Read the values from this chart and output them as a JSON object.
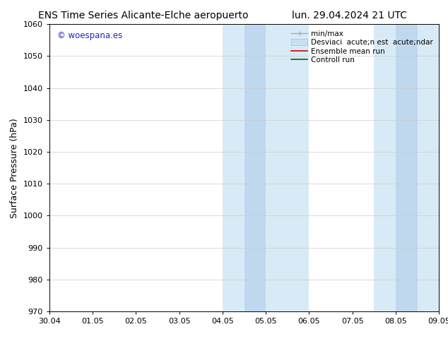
{
  "title_left": "ENS Time Series Alicante-Elche aeropuerto",
  "title_right": "lun. 29.04.2024 21 UTC",
  "ylabel": "Surface Pressure (hPa)",
  "ylim": [
    970,
    1060
  ],
  "yticks": [
    970,
    980,
    990,
    1000,
    1010,
    1020,
    1030,
    1040,
    1050,
    1060
  ],
  "xtick_labels": [
    "30.04",
    "01.05",
    "02.05",
    "03.05",
    "04.05",
    "05.05",
    "06.05",
    "07.05",
    "08.05",
    "09.05"
  ],
  "xtick_positions": [
    0,
    1,
    2,
    3,
    4,
    5,
    6,
    7,
    8,
    9
  ],
  "shaded_bands": [
    {
      "x_start": 4.0,
      "x_end": 4.5,
      "color": "#d8eaf5"
    },
    {
      "x_start": 4.5,
      "x_end": 5.0,
      "color": "#c0d8ee"
    },
    {
      "x_start": 5.0,
      "x_end": 6.0,
      "color": "#d8eaf5"
    },
    {
      "x_start": 7.5,
      "x_end": 8.0,
      "color": "#d8eaf5"
    },
    {
      "x_start": 8.0,
      "x_end": 8.5,
      "color": "#c0d8ee"
    },
    {
      "x_start": 8.5,
      "x_end": 9.0,
      "color": "#d8eaf5"
    }
  ],
  "watermark": "© woespana.es",
  "watermark_color": "#2222cc",
  "background_color": "#ffffff",
  "grid_color": "#cccccc",
  "legend_minmax_color": "#aaaaaa",
  "legend_std_color": "#c8dff5",
  "legend_ens_color": "#cc0000",
  "legend_ctrl_color": "#006600",
  "legend_label_minmax": "min/max",
  "legend_label_std": "Desviaci  acute;n est  acute;ndar",
  "legend_label_ens": "Ensemble mean run",
  "legend_label_ctrl": "Controll run",
  "title_fontsize": 10,
  "axis_label_fontsize": 9,
  "tick_fontsize": 8,
  "legend_fontsize": 7.5
}
